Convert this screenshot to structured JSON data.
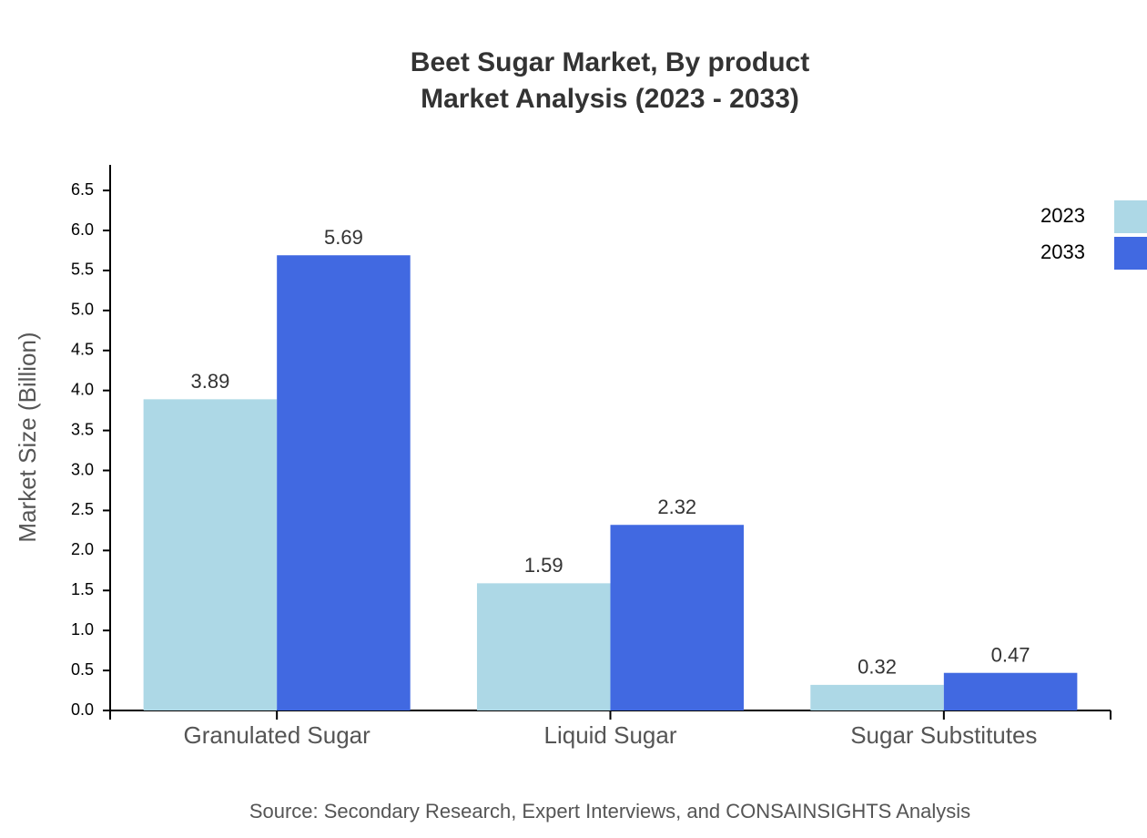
{
  "chart_data": {
    "type": "bar",
    "title": "Beet Sugar Market, By product",
    "subtitle": "Market Analysis (2023 - 2033)",
    "y_label": "Market Size (Billion)",
    "source": "Source: Secondary Research, Expert Interviews, and CONSAINSIGHTS Analysis",
    "categories": [
      "Granulated Sugar",
      "Liquid Sugar",
      "Sugar Substitutes"
    ],
    "series": [
      {
        "name": "2023",
        "color": "#add8e6",
        "values": [
          3.89,
          1.59,
          0.32
        ]
      },
      {
        "name": "2033",
        "color": "#4169e1",
        "values": [
          5.69,
          2.32,
          0.47
        ]
      }
    ],
    "ylim": [
      0,
      6.82
    ],
    "yticks": [
      {
        "value": 0,
        "label": "0.0"
      },
      0.5,
      {
        "value": 1,
        "label": "1.0"
      },
      1.5,
      {
        "value": 2,
        "label": "2.0"
      },
      2.5,
      {
        "value": 3,
        "label": "3.0"
      },
      3.5,
      {
        "value": 4,
        "label": "4.0"
      },
      4.5,
      {
        "value": 5,
        "label": "5.0"
      },
      5.5,
      {
        "value": 6,
        "label": "6.0"
      },
      6.5
    ],
    "legend": "top-right",
    "grid": false
  }
}
